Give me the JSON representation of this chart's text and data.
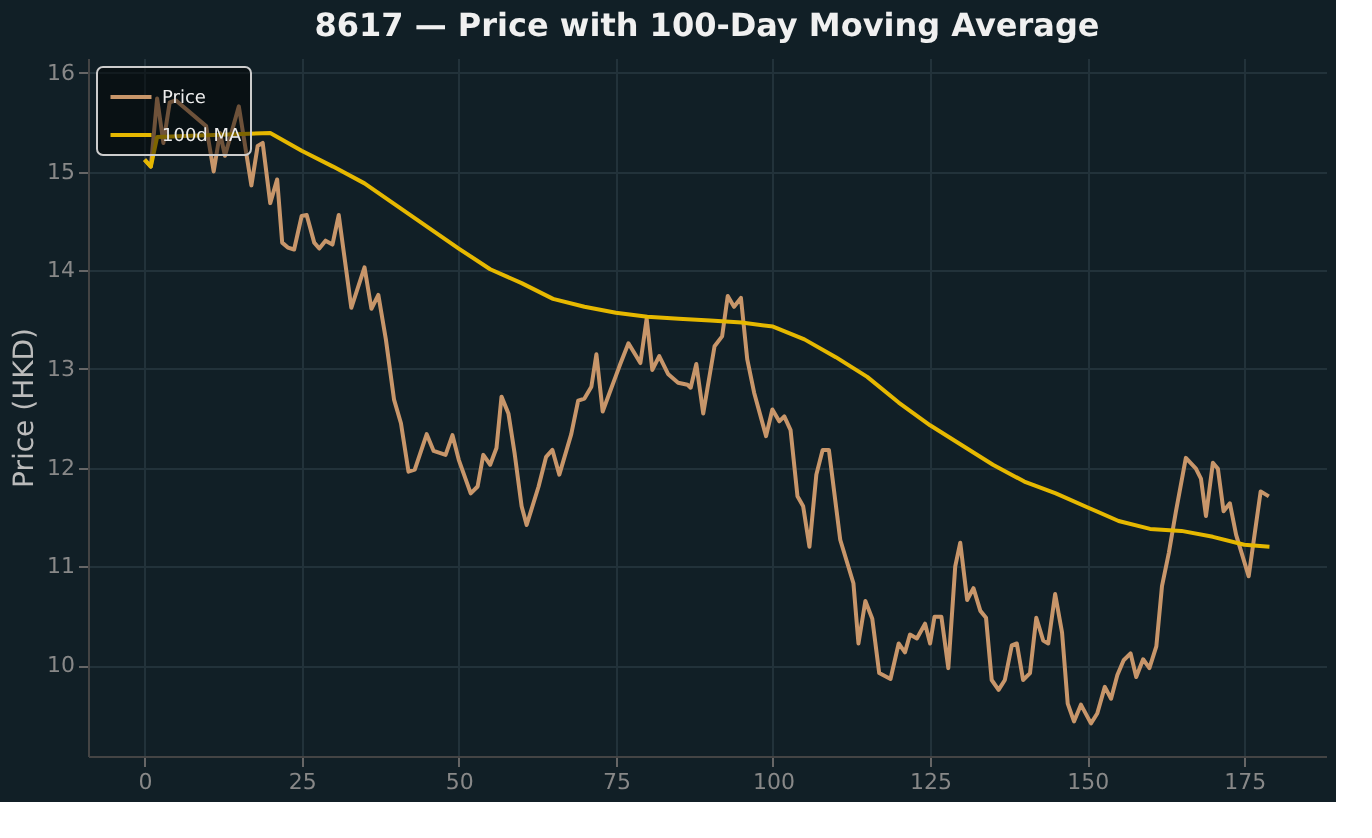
{
  "chart_data": {
    "type": "line",
    "title": "8617 — Price with 100-Day Moving Average",
    "ylabel": "Price (HKD)",
    "xlim": [
      -9,
      188
    ],
    "ylim": [
      9.08,
      16.15
    ],
    "xticks": [
      0,
      25,
      50,
      75,
      100,
      125,
      150,
      175
    ],
    "yticks": [
      10,
      11,
      12,
      13,
      14,
      15,
      16
    ],
    "grid": true,
    "legend": "top left",
    "line_style": "solid",
    "marker": "none",
    "series": [
      {
        "name": "Price",
        "color": "#c8966a",
        "x": [
          0,
          1,
          2,
          3,
          4,
          5,
          9.8,
          11,
          12,
          12.8,
          15,
          17,
          18,
          18.8,
          20,
          21.1,
          21.9,
          22.8,
          23.8,
          25,
          25.8,
          27,
          27.8,
          28.8,
          29.9,
          30.9,
          32.9,
          35,
          36.1,
          37.2,
          38.4,
          39.7,
          40.8,
          42,
          43,
          44.9,
          46,
          47.9,
          49,
          50,
          51.9,
          53,
          53.9,
          55,
          56,
          56.8,
          57.9,
          58.9,
          60,
          60.8,
          62.7,
          63.9,
          64.9,
          66,
          67.9,
          69,
          70,
          71.1,
          71.9,
          72.9,
          74,
          75,
          75.7,
          77,
          78.9,
          79.9,
          80.8,
          81.9,
          83.3,
          84.9,
          86.4,
          86.9,
          87.8,
          88.9,
          90.7,
          91.9,
          92.8,
          93.8,
          94.9,
          95.9,
          97,
          98.9,
          99.9,
          101,
          101.8,
          102.8,
          103.9,
          104.8,
          105.8,
          106.9,
          107.9,
          108.9,
          110.7,
          112.8,
          113.6,
          114.7,
          115.8,
          116.9,
          118.7,
          120,
          121,
          121.8,
          122.9,
          124.2,
          125,
          125.7,
          126.8,
          127.9,
          129,
          129.8,
          130.9,
          131.9,
          133,
          133.9,
          134.8,
          135.9,
          136.9,
          138,
          138.8,
          139.8,
          140.9,
          141.9,
          143,
          143.8,
          144.9,
          146,
          146.9,
          147.9,
          149,
          150.6,
          151.6,
          152.8,
          153.8,
          154.8,
          155.8,
          156.9,
          157.8,
          158.9,
          159.9,
          161,
          161.9,
          163,
          164.1,
          165.7,
          167.3,
          168.1,
          168.9,
          170,
          170.8,
          171.7,
          172.7,
          173.7,
          175.7,
          177.6,
          178.9
        ],
        "values": [
          15.12,
          15.05,
          15.74,
          15.29,
          15.7,
          15.72,
          15.46,
          15.0,
          15.39,
          15.16,
          15.66,
          14.86,
          15.26,
          15.29,
          14.68,
          14.92,
          14.28,
          14.23,
          14.21,
          14.55,
          14.56,
          14.28,
          14.22,
          14.3,
          14.26,
          14.56,
          13.62,
          14.03,
          13.61,
          13.75,
          13.3,
          12.69,
          12.45,
          11.96,
          11.98,
          12.34,
          12.17,
          12.13,
          12.33,
          12.08,
          11.74,
          11.81,
          12.13,
          12.03,
          12.2,
          12.72,
          12.55,
          12.14,
          11.61,
          11.42,
          11.81,
          12.11,
          12.18,
          11.93,
          12.34,
          12.68,
          12.7,
          12.82,
          13.15,
          12.57,
          12.76,
          12.93,
          13.05,
          13.26,
          13.06,
          13.51,
          12.99,
          13.13,
          12.95,
          12.86,
          12.84,
          12.81,
          13.05,
          12.55,
          13.23,
          13.33,
          13.74,
          13.63,
          13.72,
          13.1,
          12.76,
          12.32,
          12.59,
          12.47,
          12.52,
          12.38,
          11.71,
          11.61,
          11.2,
          11.93,
          12.18,
          12.18,
          11.27,
          10.83,
          10.22,
          10.65,
          10.47,
          9.92,
          9.86,
          10.22,
          10.13,
          10.31,
          10.27,
          10.42,
          10.22,
          10.49,
          10.49,
          9.97,
          11.0,
          11.24,
          10.66,
          10.78,
          10.55,
          10.48,
          9.85,
          9.75,
          9.85,
          10.2,
          10.22,
          9.85,
          9.92,
          10.48,
          10.25,
          10.22,
          10.72,
          10.33,
          9.61,
          9.43,
          9.6,
          9.41,
          9.51,
          9.78,
          9.66,
          9.9,
          10.05,
          10.12,
          9.88,
          10.06,
          9.97,
          10.19,
          10.8,
          11.14,
          11.55,
          12.1,
          11.99,
          11.89,
          11.51,
          12.05,
          11.99,
          11.56,
          11.64,
          11.32,
          10.9,
          11.76,
          11.71
        ]
      },
      {
        "name": "100d MA",
        "color": "#e6b800",
        "x": [
          0,
          1,
          2,
          20,
          25,
          30,
          35,
          40,
          45,
          50,
          55,
          60,
          65,
          70,
          75,
          80,
          85,
          90,
          95,
          100,
          105,
          110,
          115,
          120,
          125,
          130,
          135,
          140,
          145,
          150,
          155,
          160,
          165,
          170,
          175,
          179
        ],
        "values": [
          15.12,
          15.05,
          15.35,
          15.39,
          15.21,
          15.05,
          14.88,
          14.66,
          14.44,
          14.22,
          14.01,
          13.87,
          13.71,
          13.63,
          13.57,
          13.53,
          13.51,
          13.49,
          13.47,
          13.43,
          13.3,
          13.12,
          12.92,
          12.66,
          12.43,
          12.23,
          12.03,
          11.86,
          11.74,
          11.6,
          11.46,
          11.38,
          11.36,
          11.3,
          11.22,
          11.2
        ]
      }
    ]
  }
}
